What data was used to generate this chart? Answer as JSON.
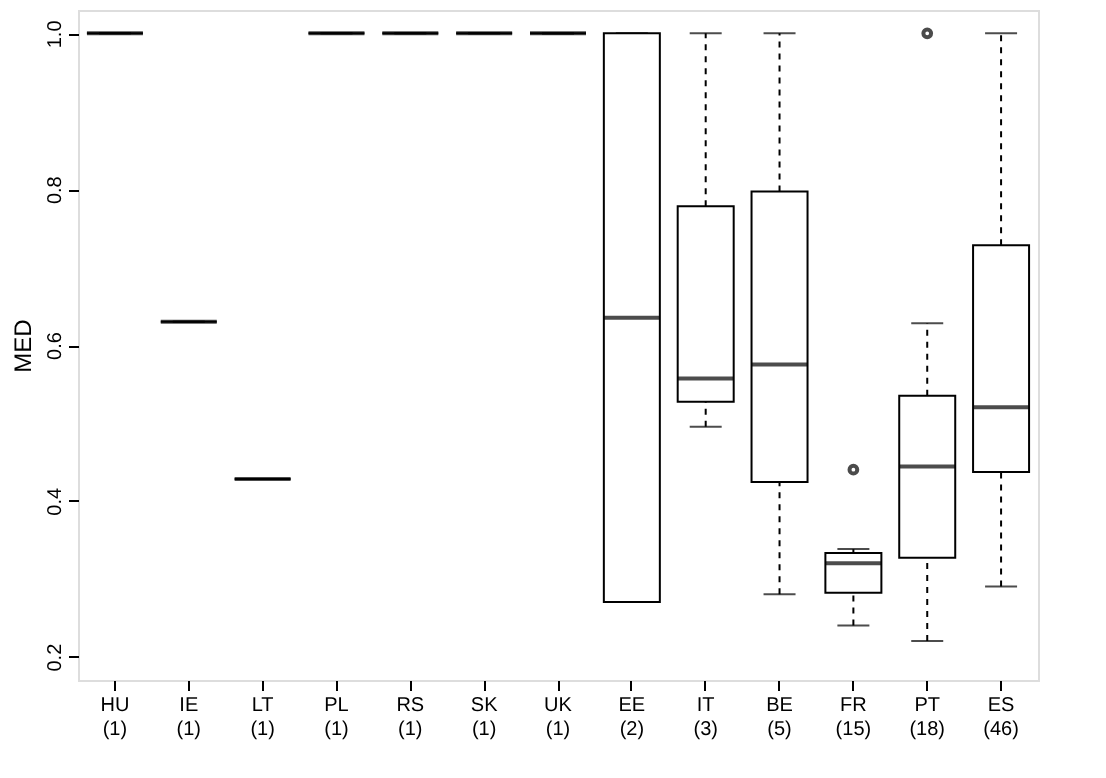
{
  "chart_data": {
    "type": "box",
    "ylabel": "MED",
    "categories": [
      "HU\n(1)",
      "IE\n(1)",
      "LT\n(1)",
      "PL\n(1)",
      "RS\n(1)",
      "SK\n(1)",
      "UK\n(1)",
      "EE\n(2)",
      "IT\n(3)",
      "BE\n(5)",
      "FR\n(15)",
      "PT\n(18)",
      "ES\n(46)"
    ],
    "boxes": [
      {
        "low": 1.0,
        "q1": 1.0,
        "median": 1.0,
        "q3": 1.0,
        "high": 1.0
      },
      {
        "low": 0.63,
        "q1": 0.63,
        "median": 0.63,
        "q3": 0.63,
        "high": 0.63
      },
      {
        "low": 0.428,
        "q1": 0.428,
        "median": 0.428,
        "q3": 0.428,
        "high": 0.428
      },
      {
        "low": 1.0,
        "q1": 1.0,
        "median": 1.0,
        "q3": 1.0,
        "high": 1.0
      },
      {
        "low": 1.0,
        "q1": 1.0,
        "median": 1.0,
        "q3": 1.0,
        "high": 1.0
      },
      {
        "low": 1.0,
        "q1": 1.0,
        "median": 1.0,
        "q3": 1.0,
        "high": 1.0
      },
      {
        "low": 1.0,
        "q1": 1.0,
        "median": 1.0,
        "q3": 1.0,
        "high": 1.0
      },
      {
        "low": 0.27,
        "q1": 0.27,
        "median": 0.635,
        "q3": 1.0,
        "high": 1.0
      },
      {
        "low": 0.495,
        "q1": 0.527,
        "median": 0.557,
        "q3": 0.778,
        "high": 1.0
      },
      {
        "low": 0.28,
        "q1": 0.424,
        "median": 0.575,
        "q3": 0.797,
        "high": 1.0
      },
      {
        "low": 0.24,
        "q1": 0.282,
        "median": 0.32,
        "q3": 0.333,
        "high": 0.338,
        "outliers": [
          0.44
        ]
      },
      {
        "low": 0.22,
        "q1": 0.327,
        "median": 0.444,
        "q3": 0.535,
        "high": 0.628,
        "outliers": [
          1.0
        ]
      },
      {
        "low": 0.29,
        "q1": 0.437,
        "median": 0.52,
        "q3": 0.728,
        "high": 1.0
      }
    ],
    "ylim": [
      0.17,
      1.03
    ],
    "yticks": [
      0.2,
      0.4,
      0.6,
      0.8,
      {
        "value": 1.0,
        "label": "1.0"
      }
    ],
    "grid": false,
    "line_style": "dashed"
  }
}
